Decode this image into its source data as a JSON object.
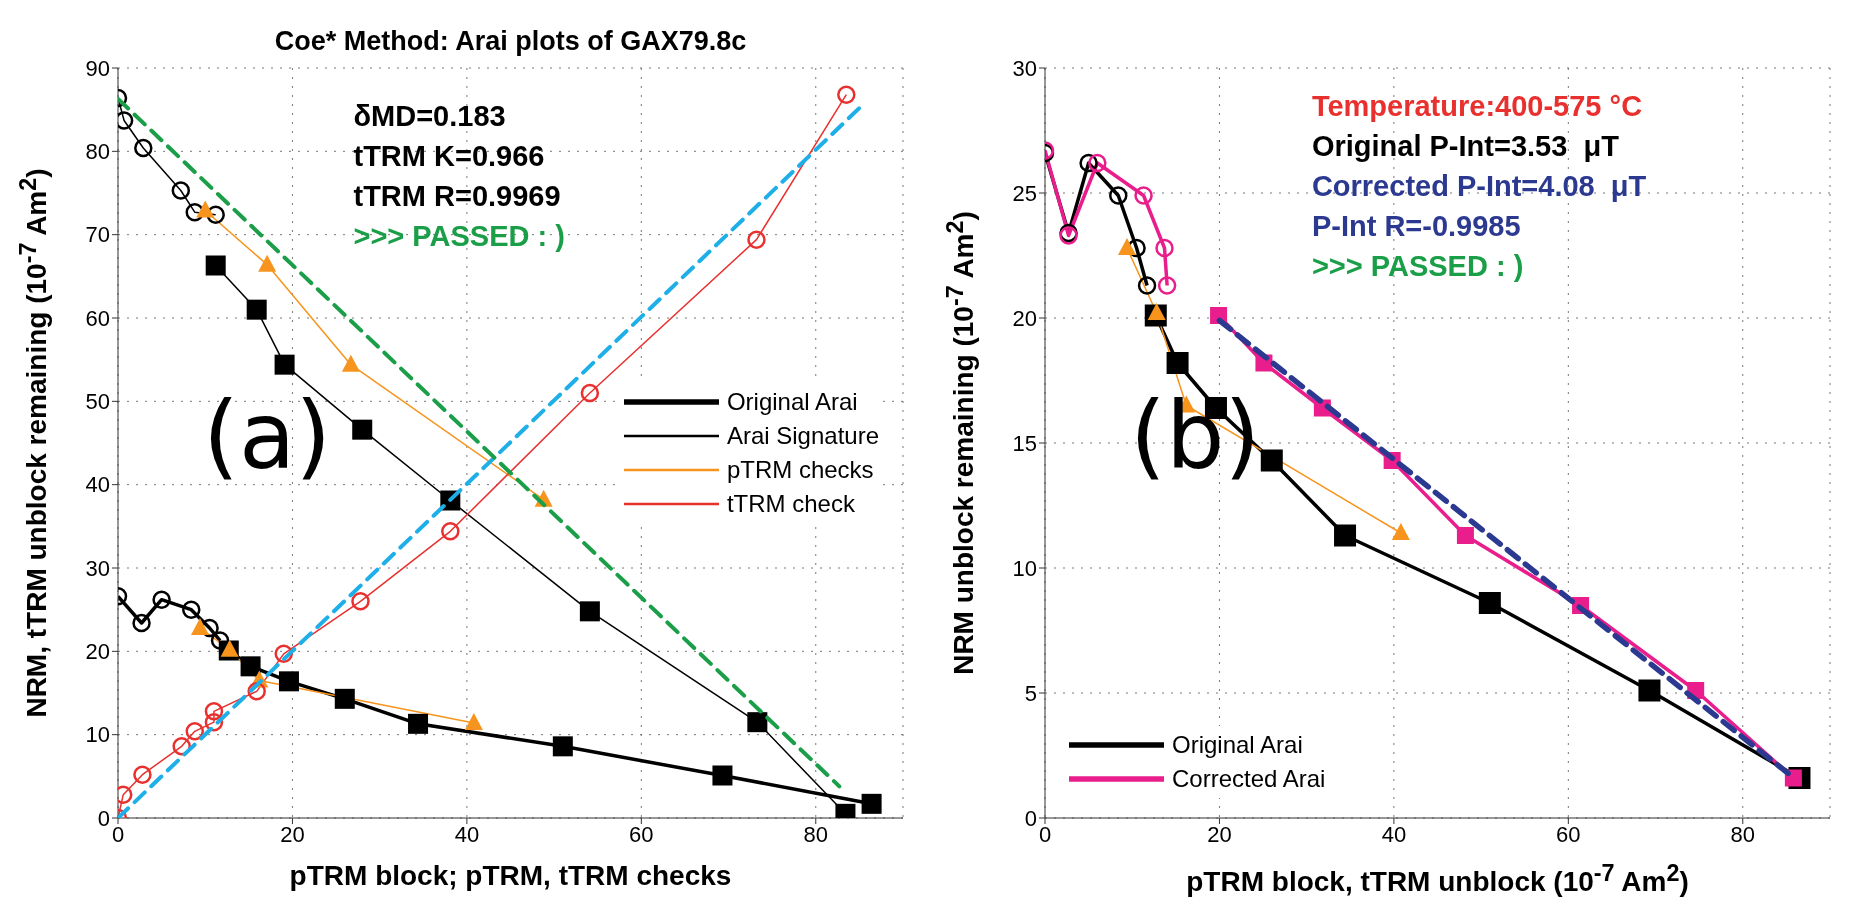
{
  "chart_data": [
    {
      "type": "line",
      "title": "Coe* Method: Arai plots of GAX79.8c",
      "xlabel": "pTRM block; pTRM, tTRM checks",
      "ylabel": "NRM, tTRM unblock remaining (10$^{-7}$ Am$^{2}$)",
      "xlim": [
        0,
        90
      ],
      "xticks": [
        0,
        20,
        40,
        60,
        80
      ],
      "ylim": [
        0,
        90
      ],
      "yticks": [
        0,
        10,
        20,
        30,
        40,
        50,
        60,
        70,
        80,
        90
      ],
      "grid": true,
      "legend": "right",
      "line_style": "solid",
      "annotations": [
        "(a)",
        "δMD=0.183",
        "tTRM K=0.966",
        "tTRM R=0.9969",
        ">>> PASSED : )"
      ],
      "series": [
        {
          "name": "Original Arai",
          "color": "#000000",
          "marker": "square",
          "x": [
            12.7,
            15.2,
            19.6,
            26.0,
            34.4,
            51.0,
            69.3,
            86.4
          ],
          "values": [
            20.1,
            18.2,
            16.4,
            14.3,
            11.3,
            8.6,
            5.1,
            1.7
          ]
        },
        {
          "color": "#000000",
          "marker": "circle",
          "x": [
            0,
            2.7,
            5.0,
            8.4,
            10.5,
            11.7
          ],
          "values": [
            26.6,
            23.4,
            26.2,
            25.0,
            22.8,
            21.3
          ]
        },
        {
          "name": "Arai Signature",
          "color": "#000000",
          "marker": "square",
          "x": [
            11.2,
            15.9,
            19.1,
            28.0,
            38.1,
            54.1,
            73.3,
            83.4
          ],
          "values": [
            66.3,
            61.0,
            54.4,
            46.6,
            38.1,
            24.8,
            11.5,
            0.5
          ]
        },
        {
          "color": "#000000",
          "marker": "circle",
          "x": [
            0,
            0.7,
            2.9,
            7.2,
            8.8,
            11.2
          ],
          "values": [
            86.4,
            83.7,
            80.4,
            75.3,
            72.7,
            72.4
          ]
        },
        {
          "name": "pTRM checks",
          "color": "#f7941d",
          "marker": "triangle",
          "x": [
            10.0,
            17.1,
            26.7,
            48.8
          ],
          "values": [
            72.9,
            66.4,
            54.4,
            38.2
          ]
        },
        {
          "color": "#f7941d",
          "marker": "triangle",
          "x": [
            9.4,
            12.8,
            16.2,
            40.8
          ],
          "values": [
            22.8,
            20.2,
            16.5,
            11.4
          ]
        },
        {
          "name": "tTRM check",
          "color": "#e8312f",
          "marker": "circle",
          "x": [
            0,
            0.6,
            2.8,
            7.3,
            8.8,
            11.0,
            11.0,
            15.9,
            19.0,
            27.8,
            38.1,
            54.1,
            73.2,
            83.5
          ],
          "values": [
            0,
            2.8,
            5.2,
            8.6,
            10.4,
            11.5,
            12.8,
            15.2,
            19.7,
            26.0,
            34.4,
            51.0,
            69.4,
            86.8
          ]
        },
        {
          "color": "#1eaee8",
          "marker": "none",
          "line_style": "dashed",
          "x": [
            0,
            85.5
          ],
          "values": [
            0,
            85.7
          ]
        },
        {
          "color": "#1a9e48",
          "marker": "none",
          "line_style": "dashed",
          "x": [
            0,
            82.7
          ],
          "values": [
            86.3,
            3.8
          ]
        }
      ]
    },
    {
      "type": "line",
      "xlabel": "pTRM block, tTRM unblock (10$^{-7}$ Am$^{2}$)",
      "ylabel": "NRM unblock remaining (10$^{-7}$ Am$^{2}$)",
      "xlim": [
        0,
        90
      ],
      "xticks": [
        0,
        20,
        40,
        60,
        80
      ],
      "ylim": [
        0,
        30
      ],
      "yticks": [
        0,
        5,
        10,
        15,
        20,
        25,
        30
      ],
      "grid": true,
      "legend": "bottom left",
      "line_style": "solid",
      "annotations": [
        "(b)",
        "Temperature:400-575 °C",
        "Original P-Int=3.53  μT",
        "Corrected P-Int=4.08  μT",
        "P-Int R=-0.9985",
        ">>> PASSED : )"
      ],
      "series": [
        {
          "name": "Original Arai",
          "color": "#000000",
          "marker": "square",
          "x": [
            12.7,
            15.2,
            19.6,
            26.0,
            34.4,
            51.0,
            69.3,
            86.5
          ],
          "values": [
            20.1,
            18.2,
            16.4,
            14.3,
            11.3,
            8.6,
            5.1,
            1.6
          ]
        },
        {
          "color": "#000000",
          "marker": "circle",
          "x": [
            0,
            2.7,
            5.0,
            8.4,
            10.5,
            11.7
          ],
          "values": [
            26.6,
            23.4,
            26.2,
            24.9,
            22.8,
            21.3
          ]
        },
        {
          "name": "Corrected Arai",
          "color": "#e91e8c",
          "marker": "square",
          "x": [
            19.9,
            25.1,
            31.8,
            39.8,
            48.2,
            61.4,
            74.6,
            85.8
          ],
          "values": [
            20.1,
            18.2,
            16.4,
            14.3,
            11.3,
            8.5,
            5.1,
            1.6
          ]
        },
        {
          "color": "#e91e8c",
          "marker": "circle",
          "x": [
            0,
            2.7,
            6.0,
            11.3,
            13.7,
            14.0
          ],
          "values": [
            26.7,
            23.3,
            26.2,
            24.9,
            22.8,
            21.3
          ]
        },
        {
          "color": "#f7941d",
          "marker": "triangle",
          "x": [
            9.4,
            12.8,
            16.2,
            40.8
          ],
          "values": [
            22.8,
            20.2,
            16.5,
            11.4
          ]
        },
        {
          "color": "#2b3990",
          "marker": "none",
          "line_style": "dashed",
          "x": [
            20.0,
            85.5
          ],
          "values": [
            19.9,
            1.7
          ]
        }
      ]
    }
  ]
}
